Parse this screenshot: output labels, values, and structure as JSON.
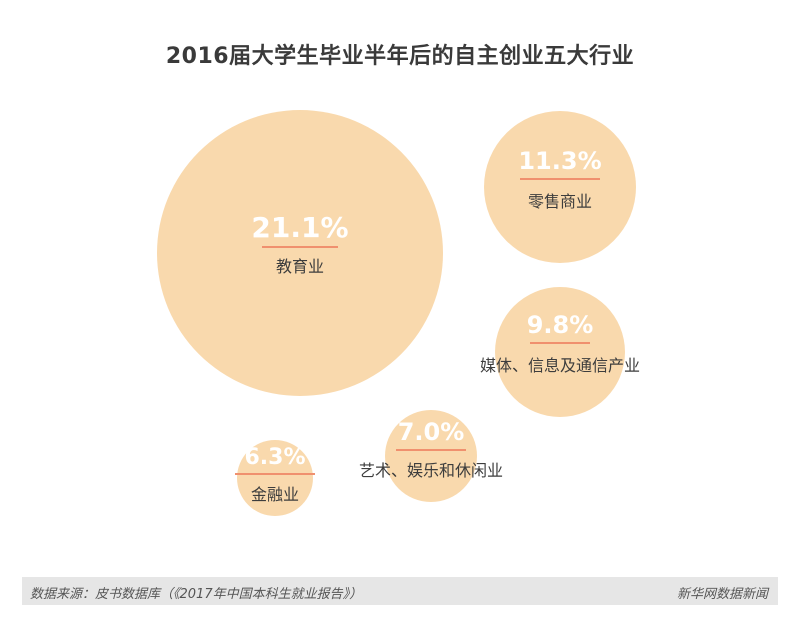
{
  "title": "2016届大学生毕业半年后的自主创业五大行业",
  "chart_data": {
    "type": "bubble",
    "title": "2016届大学生毕业半年后的自主创业五大行业",
    "unit": "%",
    "items": [
      {
        "label": "教育业",
        "value": 21.1,
        "value_text": "21.1%"
      },
      {
        "label": "零售商业",
        "value": 11.3,
        "value_text": "11.3%"
      },
      {
        "label": "媒体、信息及通信产业",
        "value": 9.8,
        "value_text": "9.8%"
      },
      {
        "label": "艺术、娱乐和休闲业",
        "value": 7.0,
        "value_text": "7.0%"
      },
      {
        "label": "金融业",
        "value": 6.3,
        "value_text": "6.3%"
      }
    ]
  },
  "colors": {
    "bubble": "#f9d9ad",
    "underline": "#f0906e",
    "value_text": "#ffffff",
    "label_text": "#3d3d3d"
  },
  "footer": {
    "source": "数据来源：皮书数据库（《2017年中国本科生就业报告》）",
    "brand": "新华网数据新闻"
  }
}
